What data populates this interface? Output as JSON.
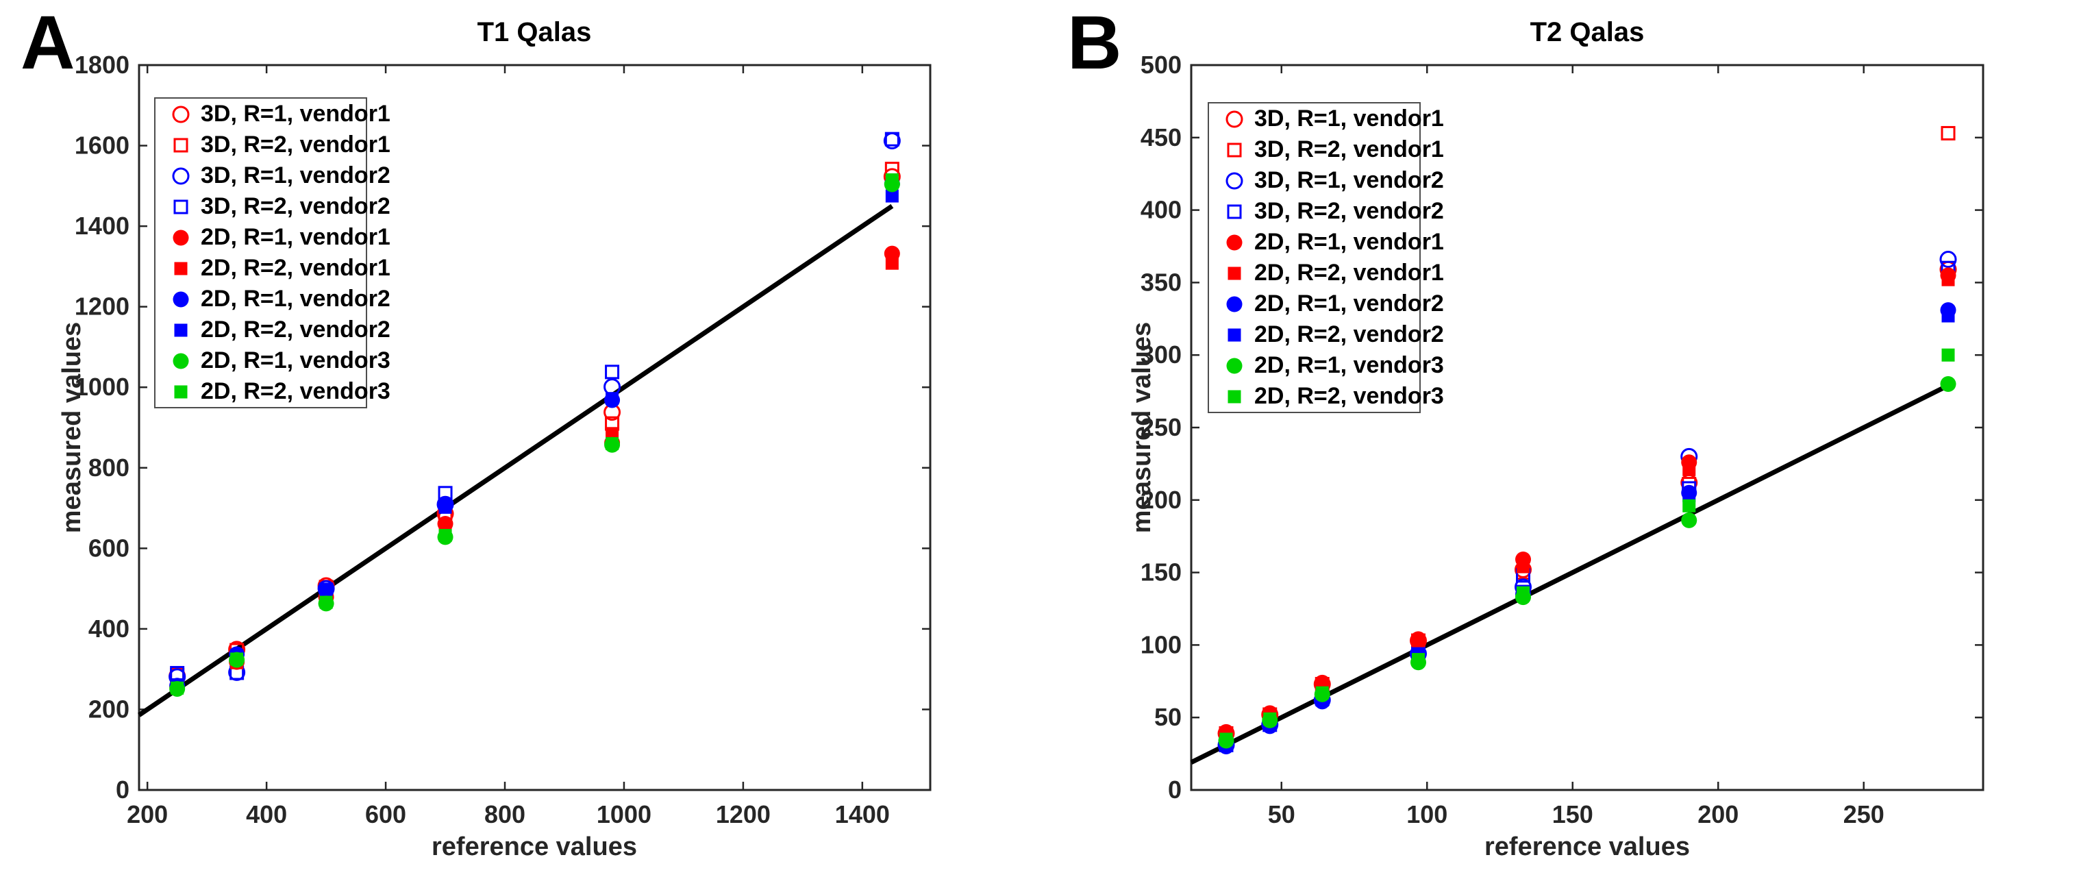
{
  "figure": {
    "background": "#ffffff",
    "axes_color": "#262626",
    "marker_colors": {
      "vendor1": "#ff0000",
      "vendor2": "#0000ff",
      "vendor3": "#00d400"
    }
  },
  "chart_data": [
    {
      "panel_label": "A",
      "type": "scatter",
      "title": "T1 Qalas",
      "xlabel": "reference values",
      "ylabel": "measured values",
      "xlim": [
        186,
        1514
      ],
      "ylim": [
        0,
        1800
      ],
      "xticks": [
        200,
        400,
        600,
        800,
        1000,
        1200,
        1400
      ],
      "yticks": [
        0,
        200,
        400,
        600,
        800,
        1000,
        1200,
        1400,
        1600,
        1800
      ],
      "grid": false,
      "box": true,
      "legend_position": "top-left",
      "identity_line": {
        "color": "#000000",
        "x_start": 186,
        "y_start": 186,
        "x_end": 1450,
        "y_end": 1450
      },
      "x": [
        250,
        350,
        500,
        700,
        980,
        1450
      ],
      "series": [
        {
          "name": "3D, R=1, vendor1",
          "marker": "circle",
          "fill": "open",
          "color": "#ff0000",
          "values": [
            283,
            349,
            507,
            686,
            938,
            1523
          ]
        },
        {
          "name": "3D, R=2, vendor1",
          "marker": "square",
          "fill": "open",
          "color": "#ff0000",
          "values": [
            285,
            347,
            504,
            689,
            910,
            1542
          ]
        },
        {
          "name": "3D, R=1, vendor2",
          "marker": "circle",
          "fill": "open",
          "color": "#0000ff",
          "values": [
            281,
            292,
            500,
            709,
            1001,
            1612
          ]
        },
        {
          "name": "3D, R=2, vendor2",
          "marker": "square",
          "fill": "open",
          "color": "#0000ff",
          "values": [
            290,
            291,
            497,
            737,
            1038,
            1616
          ]
        },
        {
          "name": "2D, R=1, vendor1",
          "marker": "circle",
          "fill": "filled",
          "color": "#ff0000",
          "values": [
            256,
            318,
            479,
            661,
            862,
            1332
          ]
        },
        {
          "name": "2D, R=2, vendor1",
          "marker": "square",
          "fill": "filled",
          "color": "#ff0000",
          "values": [
            258,
            316,
            482,
            657,
            885,
            1308
          ]
        },
        {
          "name": "2D, R=1, vendor2",
          "marker": "circle",
          "fill": "filled",
          "color": "#0000ff",
          "values": [
            259,
            337,
            495,
            706,
            968,
            1505
          ]
        },
        {
          "name": "2D, R=2, vendor2",
          "marker": "square",
          "fill": "filled",
          "color": "#0000ff",
          "values": [
            261,
            334,
            492,
            702,
            972,
            1475
          ]
        },
        {
          "name": "2D, R=1, vendor3",
          "marker": "circle",
          "fill": "filled",
          "color": "#00d400",
          "values": [
            251,
            323,
            463,
            628,
            857,
            1504
          ]
        },
        {
          "name": "2D, R=2, vendor3",
          "marker": "square",
          "fill": "filled",
          "color": "#00d400",
          "values": [
            253,
            325,
            466,
            632,
            860,
            1515
          ]
        }
      ]
    },
    {
      "panel_label": "B",
      "type": "scatter",
      "title": "T2 Qalas",
      "xlabel": "reference values",
      "ylabel": "measured values",
      "xlim": [
        19,
        291
      ],
      "ylim": [
        0,
        500
      ],
      "xticks": [
        50,
        100,
        150,
        200,
        250
      ],
      "yticks": [
        0,
        50,
        100,
        150,
        200,
        250,
        300,
        350,
        400,
        450,
        500
      ],
      "grid": false,
      "box": true,
      "legend_position": "top-left",
      "identity_line": {
        "color": "#000000",
        "x_start": 19,
        "y_start": 19,
        "x_end": 278,
        "y_end": 278
      },
      "x": [
        31,
        46,
        64,
        97,
        133,
        190,
        279
      ],
      "series": [
        {
          "name": "3D, R=1, vendor1",
          "marker": "circle",
          "fill": "open",
          "color": "#ff0000",
          "values": [
            39,
            52,
            73,
            103,
            152,
            212,
            359
          ]
        },
        {
          "name": "3D, R=2, vendor1",
          "marker": "square",
          "fill": "open",
          "color": "#ff0000",
          "values": [
            39,
            52,
            73,
            103,
            150,
            211,
            453
          ]
        },
        {
          "name": "3D, R=1, vendor2",
          "marker": "circle",
          "fill": "open",
          "color": "#0000ff",
          "values": [
            31,
            45,
            62,
            94,
            140,
            230,
            366
          ]
        },
        {
          "name": "3D, R=2, vendor2",
          "marker": "square",
          "fill": "open",
          "color": "#0000ff",
          "values": [
            31,
            45,
            63,
            94,
            148,
            208,
            360
          ]
        },
        {
          "name": "2D, R=1, vendor1",
          "marker": "circle",
          "fill": "filled",
          "color": "#ff0000",
          "values": [
            40,
            53,
            74,
            104,
            159,
            226,
            355
          ]
        },
        {
          "name": "2D, R=2, vendor1",
          "marker": "square",
          "fill": "filled",
          "color": "#ff0000",
          "values": [
            39,
            52,
            73,
            101,
            154,
            221,
            352
          ]
        },
        {
          "name": "2D, R=1, vendor2",
          "marker": "circle",
          "fill": "filled",
          "color": "#0000ff",
          "values": [
            30,
            44,
            61,
            93,
            135,
            205,
            331
          ]
        },
        {
          "name": "2D, R=2, vendor2",
          "marker": "square",
          "fill": "filled",
          "color": "#0000ff",
          "values": [
            31,
            45,
            62,
            94,
            137,
            203,
            327
          ]
        },
        {
          "name": "2D, R=1, vendor3",
          "marker": "circle",
          "fill": "filled",
          "color": "#00d400",
          "values": [
            34,
            48,
            66,
            88,
            133,
            186,
            280
          ]
        },
        {
          "name": "2D, R=2, vendor3",
          "marker": "square",
          "fill": "filled",
          "color": "#00d400",
          "values": [
            35,
            49,
            67,
            90,
            136,
            196,
            300
          ]
        }
      ]
    }
  ]
}
